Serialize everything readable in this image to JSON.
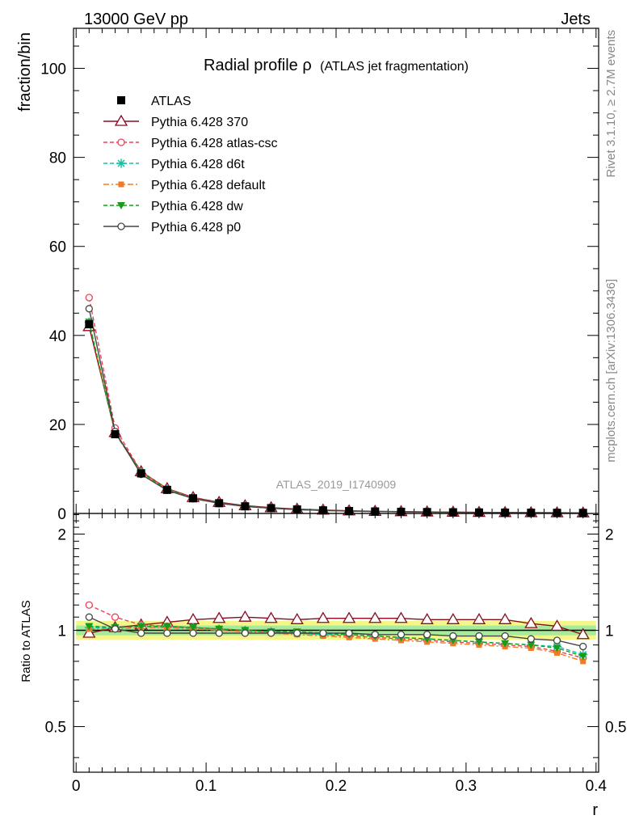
{
  "header": {
    "left": "13000 GeV pp",
    "right": "Jets"
  },
  "side_labels": {
    "top": "Rivet 3.1.10, ≥ 2.7M events",
    "bottom": "mcplots.cern.ch [arXiv:1306.3436]"
  },
  "watermark": "ATLAS_2019_I1740909",
  "chart_data": {
    "type": "line",
    "title": "Radial profile ρ",
    "subtitle": "(ATLAS jet fragmentation)",
    "xlabel": "r",
    "ylabel": "fraction/bin",
    "ratio_ylabel": "Ratio to ATLAS",
    "xlim": [
      -0.002,
      0.402
    ],
    "ylim": [
      0,
      109
    ],
    "ratio_ylim": [
      0.36,
      2.32
    ],
    "ratio_log_scale": true,
    "x_ticks": [
      "0",
      "0.1",
      "0.2",
      "0.3",
      "0.4"
    ],
    "y_ticks": [
      "0",
      "20",
      "40",
      "60",
      "80",
      "100"
    ],
    "ratio_ticks": [
      "0.5",
      "1",
      "2"
    ],
    "legend_position": "top-left",
    "x": [
      0.01,
      0.03,
      0.05,
      0.07,
      0.09,
      0.11,
      0.13,
      0.15,
      0.17,
      0.19,
      0.21,
      0.23,
      0.25,
      0.27,
      0.29,
      0.31,
      0.33,
      0.35,
      0.37,
      0.39
    ],
    "data": {
      "name": "ATLAS",
      "values": [
        42.5,
        17.8,
        9.0,
        5.3,
        3.4,
        2.3,
        1.6,
        1.2,
        0.9,
        0.7,
        0.55,
        0.45,
        0.38,
        0.32,
        0.27,
        0.23,
        0.2,
        0.17,
        0.15,
        0.13
      ]
    },
    "series": [
      {
        "name": "Pythia 6.428 370",
        "color": "#8b0a1e",
        "dash": "",
        "marker": "triangle-open",
        "values": [
          42.0,
          18.2,
          9.4,
          5.6,
          3.6,
          2.5,
          1.75,
          1.3,
          0.98,
          0.77,
          0.6,
          0.49,
          0.42,
          0.35,
          0.3,
          0.25,
          0.22,
          0.18,
          0.16,
          0.13
        ],
        "ratio": [
          0.98,
          1.02,
          1.04,
          1.06,
          1.08,
          1.09,
          1.1,
          1.09,
          1.08,
          1.09,
          1.09,
          1.09,
          1.09,
          1.08,
          1.08,
          1.08,
          1.08,
          1.05,
          1.03,
          0.97
        ]
      },
      {
        "name": "Pythia 6.428 atlas-csc",
        "color": "#e8435a",
        "dash": "5,3",
        "marker": "circle-open",
        "values": [
          48.5,
          19.2,
          9.4,
          5.5,
          3.5,
          2.35,
          1.62,
          1.2,
          0.88,
          0.68,
          0.53,
          0.43,
          0.36,
          0.3,
          0.25,
          0.21,
          0.18,
          0.15,
          0.13,
          0.11
        ],
        "ratio": [
          1.2,
          1.1,
          1.04,
          1.03,
          1.02,
          1.01,
          1.0,
          0.99,
          0.98,
          0.97,
          0.96,
          0.95,
          0.94,
          0.93,
          0.92,
          0.91,
          0.9,
          0.89,
          0.86,
          0.82
        ]
      },
      {
        "name": "Pythia 6.428 d6t",
        "color": "#10c2a0",
        "dash": "5,3",
        "marker": "star",
        "values": [
          43.0,
          18.0,
          9.2,
          5.4,
          3.45,
          2.32,
          1.6,
          1.18,
          0.88,
          0.68,
          0.53,
          0.43,
          0.36,
          0.3,
          0.25,
          0.21,
          0.18,
          0.15,
          0.13,
          0.11
        ],
        "ratio": [
          1.02,
          1.02,
          1.03,
          1.02,
          1.02,
          1.01,
          1.0,
          0.99,
          0.98,
          0.97,
          0.97,
          0.96,
          0.95,
          0.94,
          0.93,
          0.92,
          0.91,
          0.9,
          0.89,
          0.84
        ]
      },
      {
        "name": "Pythia 6.428 default",
        "color": "#f07a28",
        "dash": "7,3,2,3",
        "marker": "square-filled",
        "values": [
          43.0,
          18.0,
          9.2,
          5.4,
          3.45,
          2.32,
          1.6,
          1.18,
          0.88,
          0.68,
          0.52,
          0.42,
          0.35,
          0.29,
          0.24,
          0.2,
          0.17,
          0.15,
          0.13,
          0.1
        ],
        "ratio": [
          1.01,
          1.01,
          1.02,
          1.02,
          1.01,
          1.0,
          0.99,
          0.98,
          0.97,
          0.96,
          0.95,
          0.94,
          0.93,
          0.92,
          0.91,
          0.9,
          0.89,
          0.88,
          0.85,
          0.8
        ]
      },
      {
        "name": "Pythia 6.428 dw",
        "color": "#159e19",
        "dash": "5,3",
        "marker": "triangle-down-filled",
        "values": [
          43.0,
          18.1,
          9.25,
          5.45,
          3.47,
          2.33,
          1.62,
          1.19,
          0.89,
          0.69,
          0.54,
          0.44,
          0.37,
          0.31,
          0.26,
          0.22,
          0.19,
          0.16,
          0.14,
          0.11
        ],
        "ratio": [
          1.03,
          1.02,
          1.03,
          1.03,
          1.02,
          1.01,
          1.0,
          0.99,
          0.99,
          0.98,
          0.97,
          0.96,
          0.95,
          0.94,
          0.93,
          0.92,
          0.91,
          0.9,
          0.88,
          0.83
        ]
      },
      {
        "name": "Pythia 6.428 p0",
        "color": "#454545",
        "dash": "",
        "marker": "circle-open",
        "values": [
          46.0,
          18.4,
          8.8,
          5.2,
          3.35,
          2.28,
          1.58,
          1.18,
          0.88,
          0.69,
          0.54,
          0.44,
          0.37,
          0.31,
          0.26,
          0.22,
          0.19,
          0.16,
          0.14,
          0.12
        ],
        "ratio": [
          1.1,
          1.01,
          0.98,
          0.98,
          0.98,
          0.98,
          0.98,
          0.98,
          0.98,
          0.98,
          0.98,
          0.97,
          0.97,
          0.97,
          0.96,
          0.96,
          0.96,
          0.94,
          0.93,
          0.89
        ]
      }
    ]
  }
}
